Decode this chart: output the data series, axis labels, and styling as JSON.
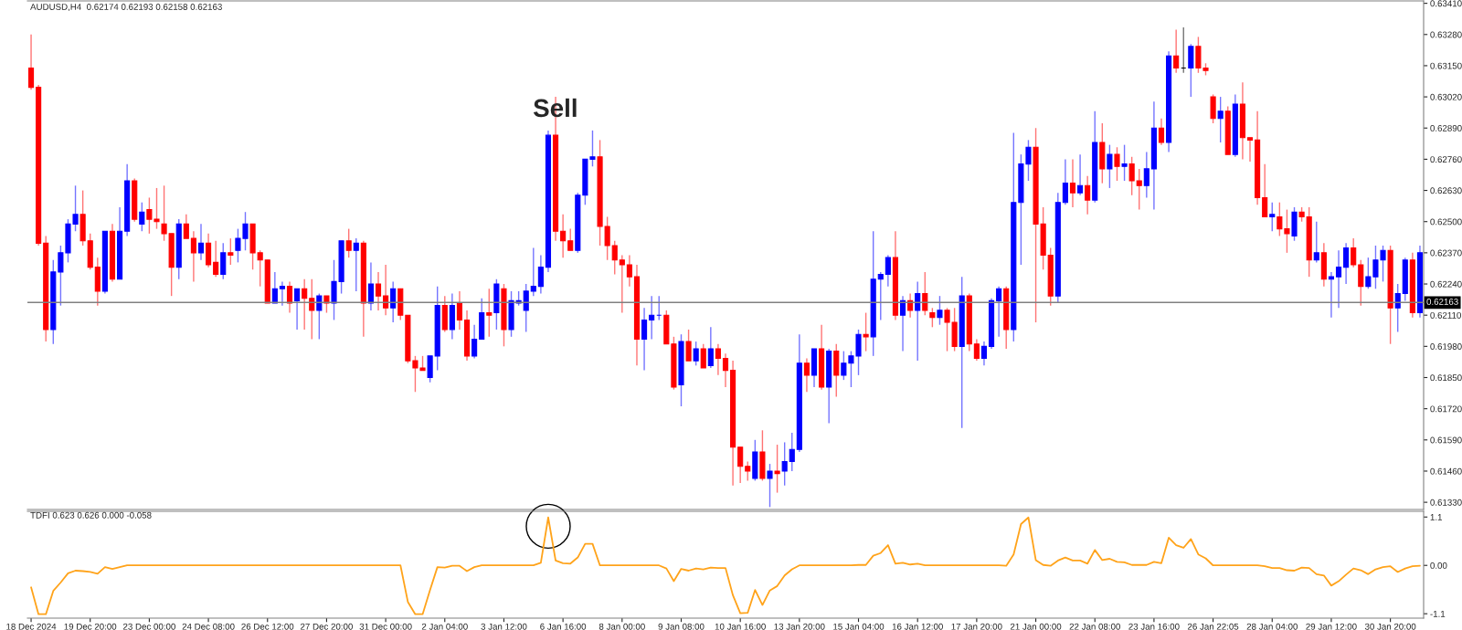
{
  "chart_data": [
    {
      "type": "candlestick",
      "title": "AUDUSD,H4  0.62174 0.62193 0.62158 0.62163",
      "categories": [
        null,
        null,
        null,
        null,
        null,
        null,
        null,
        null,
        null,
        null,
        null,
        null,
        null,
        null,
        null,
        null,
        null,
        null,
        null,
        null,
        null,
        null,
        null,
        null,
        null,
        null,
        null,
        null,
        null,
        null,
        null,
        null,
        null,
        null,
        null,
        null,
        null,
        null,
        null,
        null,
        null,
        null,
        null,
        null,
        null,
        null,
        null,
        null,
        null,
        null,
        null,
        null,
        null,
        null,
        null,
        null,
        null,
        null,
        null,
        null,
        null,
        null,
        null,
        null,
        null,
        null,
        null,
        null,
        null,
        null,
        null,
        null,
        null,
        null,
        null,
        null,
        null,
        null,
        null,
        null,
        null,
        null,
        null,
        null,
        null,
        null,
        null,
        null,
        null,
        null,
        null,
        null,
        null,
        null,
        null,
        null,
        null,
        null,
        null,
        null,
        null,
        null,
        null,
        null,
        null,
        null,
        null,
        null,
        null,
        null,
        null,
        null,
        null,
        null,
        null,
        null,
        null,
        null,
        null,
        null,
        null,
        null,
        null,
        null,
        null,
        null,
        null,
        null,
        null,
        null,
        null,
        null,
        null,
        null,
        null,
        null,
        null,
        null,
        null,
        null,
        null,
        null,
        null,
        null,
        null,
        null,
        null,
        null,
        null,
        null,
        null,
        null,
        null,
        null,
        null,
        null,
        null,
        null,
        null,
        null,
        null,
        null,
        null,
        null,
        null,
        null,
        null,
        null,
        null,
        null,
        null,
        null,
        null,
        null,
        null,
        null,
        null,
        null,
        null,
        null,
        null,
        null,
        null,
        null,
        null,
        null,
        null,
        null,
        null
      ],
      "ohlc": [
        [
          0.6314,
          0.6328,
          0.6305,
          0.6306
        ],
        [
          0.6306,
          0.6307,
          0.624,
          0.6241
        ],
        [
          0.6241,
          0.6244,
          0.62,
          0.6205
        ],
        [
          0.6205,
          0.6234,
          0.6199,
          0.6229
        ],
        [
          0.6229,
          0.624,
          0.6215,
          0.6237
        ],
        [
          0.6237,
          0.6251,
          0.6233,
          0.6249
        ],
        [
          0.6249,
          0.6265,
          0.6246,
          0.6253
        ],
        [
          0.6253,
          0.6263,
          0.624,
          0.6242
        ],
        [
          0.6242,
          0.6245,
          0.623,
          0.6231
        ],
        [
          0.6231,
          0.6235,
          0.6215,
          0.6221
        ],
        [
          0.6221,
          0.6246,
          0.622,
          0.6246
        ],
        [
          0.6246,
          0.6249,
          0.6225,
          0.6226
        ],
        [
          0.6226,
          0.6256,
          0.6226,
          0.6246
        ],
        [
          0.6246,
          0.6274,
          0.6244,
          0.6267
        ],
        [
          0.6267,
          0.6268,
          0.625,
          0.6251
        ],
        [
          0.6249,
          0.6258,
          0.6246,
          0.6254
        ],
        [
          0.6255,
          0.626,
          0.6245,
          0.6251
        ],
        [
          0.6251,
          0.6264,
          0.6247,
          0.625
        ],
        [
          0.6249,
          0.6265,
          0.6242,
          0.6245
        ],
        [
          0.6245,
          0.6245,
          0.6219,
          0.6231
        ],
        [
          0.6231,
          0.6251,
          0.6226,
          0.6249
        ],
        [
          0.6249,
          0.6253,
          0.6243,
          0.6243
        ],
        [
          0.6243,
          0.6246,
          0.6225,
          0.6237
        ],
        [
          0.6237,
          0.6249,
          0.6234,
          0.6241
        ],
        [
          0.6241,
          0.6245,
          0.6231,
          0.6232
        ],
        [
          0.6233,
          0.6242,
          0.6227,
          0.6228
        ],
        [
          0.6228,
          0.6241,
          0.6226,
          0.6237
        ],
        [
          0.6237,
          0.6243,
          0.6232,
          0.6236
        ],
        [
          0.6238,
          0.6247,
          0.6233,
          0.6243
        ],
        [
          0.6243,
          0.6254,
          0.6238,
          0.6249
        ],
        [
          0.6249,
          0.6249,
          0.623,
          0.6237
        ],
        [
          0.6237,
          0.6238,
          0.6223,
          0.6234
        ],
        [
          0.6234,
          0.6234,
          0.6216,
          0.6216
        ],
        [
          0.6216,
          0.6229,
          0.6216,
          0.6222
        ],
        [
          0.6222,
          0.6225,
          0.6215,
          0.6223
        ],
        [
          0.6223,
          0.6225,
          0.6212,
          0.6216
        ],
        [
          0.6217,
          0.6222,
          0.6205,
          0.6222
        ],
        [
          0.6222,
          0.6226,
          0.6205,
          0.6218
        ],
        [
          0.6218,
          0.6226,
          0.6201,
          0.6213
        ],
        [
          0.6213,
          0.622,
          0.6201,
          0.6219
        ],
        [
          0.6219,
          0.6219,
          0.6212,
          0.6216
        ],
        [
          0.6216,
          0.6234,
          0.6209,
          0.6225
        ],
        [
          0.6225,
          0.6242,
          0.622,
          0.6242
        ],
        [
          0.6242,
          0.6247,
          0.6235,
          0.6238
        ],
        [
          0.6238,
          0.6243,
          0.6221,
          0.6241
        ],
        [
          0.6241,
          0.6242,
          0.6202,
          0.6216
        ],
        [
          0.6216,
          0.6233,
          0.6213,
          0.6224
        ],
        [
          0.6224,
          0.6229,
          0.6213,
          0.6219
        ],
        [
          0.6219,
          0.6232,
          0.6211,
          0.6214
        ],
        [
          0.6214,
          0.6225,
          0.6208,
          0.6222
        ],
        [
          0.6222,
          0.6222,
          0.6209,
          0.6211
        ],
        [
          0.6211,
          0.6211,
          0.6191,
          0.6192
        ],
        [
          0.6192,
          0.6194,
          0.6179,
          0.6189
        ],
        [
          0.6189,
          0.6194,
          0.6188,
          0.6188
        ],
        [
          0.6185,
          0.6194,
          0.6183,
          0.6194
        ],
        [
          0.6194,
          0.6223,
          0.6188,
          0.6215
        ],
        [
          0.6215,
          0.6219,
          0.6204,
          0.6205
        ],
        [
          0.6205,
          0.622,
          0.6201,
          0.6215
        ],
        [
          0.6216,
          0.6221,
          0.6205,
          0.6209
        ],
        [
          0.6209,
          0.6213,
          0.6192,
          0.6194
        ],
        [
          0.6194,
          0.6207,
          0.6193,
          0.6201
        ],
        [
          0.6201,
          0.6218,
          0.6201,
          0.6212
        ],
        [
          0.6212,
          0.6222,
          0.6202,
          0.6211
        ],
        [
          0.6212,
          0.6226,
          0.6205,
          0.6224
        ],
        [
          0.6222,
          0.6224,
          0.6198,
          0.6205
        ],
        [
          0.6205,
          0.6221,
          0.6202,
          0.6217
        ],
        [
          0.6216,
          0.6221,
          0.6215,
          0.6217
        ],
        [
          0.6213,
          0.6224,
          0.6204,
          0.6221
        ],
        [
          0.6221,
          0.6239,
          0.6219,
          0.6223
        ],
        [
          0.6223,
          0.6236,
          0.622,
          0.6231
        ],
        [
          0.6231,
          0.6288,
          0.6229,
          0.6286
        ],
        [
          0.6286,
          0.6302,
          0.6242,
          0.6246
        ],
        [
          0.6246,
          0.6253,
          0.6235,
          0.6242
        ],
        [
          0.6242,
          0.6247,
          0.6238,
          0.6238
        ],
        [
          0.6238,
          0.6262,
          0.6237,
          0.6261
        ],
        [
          0.6261,
          0.6276,
          0.6257,
          0.6276
        ],
        [
          0.6276,
          0.6288,
          0.6273,
          0.6277
        ],
        [
          0.6277,
          0.6284,
          0.624,
          0.6248
        ],
        [
          0.6248,
          0.6252,
          0.6234,
          0.624
        ],
        [
          0.624,
          0.6242,
          0.6228,
          0.6234
        ],
        [
          0.6234,
          0.6236,
          0.6212,
          0.6232
        ],
        [
          0.6232,
          0.6236,
          0.6223,
          0.6227
        ],
        [
          0.6227,
          0.6232,
          0.619,
          0.6201
        ],
        [
          0.6201,
          0.6214,
          0.6188,
          0.6209
        ],
        [
          0.6209,
          0.6219,
          0.6201,
          0.6211
        ],
        [
          0.6211,
          0.6219,
          0.6209,
          0.6211
        ],
        [
          0.6211,
          0.6213,
          0.6199,
          0.6199
        ],
        [
          0.6199,
          0.6202,
          0.618,
          0.6181
        ],
        [
          0.6182,
          0.6203,
          0.6173,
          0.62
        ],
        [
          0.62,
          0.6205,
          0.6192,
          0.6192
        ],
        [
          0.6192,
          0.62,
          0.619,
          0.6197
        ],
        [
          0.6197,
          0.6199,
          0.6189,
          0.6189
        ],
        [
          0.619,
          0.6206,
          0.6189,
          0.6197
        ],
        [
          0.6197,
          0.6199,
          0.6186,
          0.6193
        ],
        [
          0.6193,
          0.6195,
          0.6181,
          0.6188
        ],
        [
          0.6188,
          0.6192,
          0.614,
          0.6156
        ],
        [
          0.6156,
          0.6156,
          0.6141,
          0.6148
        ],
        [
          0.6148,
          0.615,
          0.6142,
          0.6146
        ],
        [
          0.6143,
          0.6159,
          0.6142,
          0.6154
        ],
        [
          0.6154,
          0.6163,
          0.6142,
          0.6143
        ],
        [
          0.6143,
          0.6149,
          0.6131,
          0.6146
        ],
        [
          0.6146,
          0.6157,
          0.6137,
          0.6145
        ],
        [
          0.6146,
          0.6158,
          0.614,
          0.615
        ],
        [
          0.615,
          0.6162,
          0.6146,
          0.6155
        ],
        [
          0.6155,
          0.6203,
          0.6154,
          0.6191
        ],
        [
          0.6191,
          0.6193,
          0.6179,
          0.6186
        ],
        [
          0.6186,
          0.6197,
          0.6181,
          0.6197
        ],
        [
          0.6197,
          0.6207,
          0.618,
          0.6181
        ],
        [
          0.6181,
          0.6197,
          0.6166,
          0.6196
        ],
        [
          0.6196,
          0.6199,
          0.6177,
          0.6186
        ],
        [
          0.6186,
          0.6196,
          0.6184,
          0.6191
        ],
        [
          0.6191,
          0.6196,
          0.6181,
          0.6194
        ],
        [
          0.6194,
          0.6205,
          0.6186,
          0.6203
        ],
        [
          0.6203,
          0.6212,
          0.6196,
          0.6202
        ],
        [
          0.6202,
          0.6246,
          0.6194,
          0.6226
        ],
        [
          0.6226,
          0.6229,
          0.6209,
          0.6228
        ],
        [
          0.6228,
          0.6236,
          0.6223,
          0.6235
        ],
        [
          0.6235,
          0.6246,
          0.6209,
          0.6211
        ],
        [
          0.6211,
          0.6219,
          0.6196,
          0.6217
        ],
        [
          0.6217,
          0.622,
          0.621,
          0.6213
        ],
        [
          0.6213,
          0.6225,
          0.6192,
          0.622
        ],
        [
          0.622,
          0.6229,
          0.6211,
          0.6213
        ],
        [
          0.6212,
          0.6214,
          0.6206,
          0.621
        ],
        [
          0.621,
          0.6219,
          0.6207,
          0.6213
        ],
        [
          0.6213,
          0.6214,
          0.6196,
          0.6208
        ],
        [
          0.6208,
          0.6214,
          0.6196,
          0.6198
        ],
        [
          0.6198,
          0.6227,
          0.6164,
          0.6219
        ],
        [
          0.6219,
          0.622,
          0.6196,
          0.6199
        ],
        [
          0.6199,
          0.6201,
          0.6192,
          0.6193
        ],
        [
          0.6193,
          0.62,
          0.619,
          0.6198
        ],
        [
          0.6198,
          0.6218,
          0.6197,
          0.6217
        ],
        [
          0.6217,
          0.6223,
          0.6202,
          0.6222
        ],
        [
          0.6222,
          0.6223,
          0.6197,
          0.6205
        ],
        [
          0.6205,
          0.6287,
          0.62,
          0.6258
        ],
        [
          0.6258,
          0.6278,
          0.6232,
          0.6274
        ],
        [
          0.6274,
          0.6284,
          0.6267,
          0.6281
        ],
        [
          0.6281,
          0.6289,
          0.6208,
          0.6249
        ],
        [
          0.6249,
          0.6256,
          0.623,
          0.6236
        ],
        [
          0.6236,
          0.6239,
          0.6215,
          0.6219
        ],
        [
          0.6219,
          0.6262,
          0.6216,
          0.6258
        ],
        [
          0.6258,
          0.6276,
          0.6257,
          0.6266
        ],
        [
          0.6266,
          0.6276,
          0.6256,
          0.6262
        ],
        [
          0.6262,
          0.6278,
          0.6261,
          0.6265
        ],
        [
          0.6265,
          0.6269,
          0.6253,
          0.6259
        ],
        [
          0.6259,
          0.6296,
          0.6258,
          0.6283
        ],
        [
          0.6283,
          0.6291,
          0.6266,
          0.6272
        ],
        [
          0.6272,
          0.6282,
          0.6264,
          0.6278
        ],
        [
          0.6278,
          0.6281,
          0.6267,
          0.6273
        ],
        [
          0.6273,
          0.6282,
          0.6267,
          0.6274
        ],
        [
          0.6274,
          0.6277,
          0.6261,
          0.6267
        ],
        [
          0.6267,
          0.6272,
          0.6255,
          0.6265
        ],
        [
          0.6265,
          0.6279,
          0.626,
          0.6272
        ],
        [
          0.6272,
          0.63,
          0.6255,
          0.6289
        ],
        [
          0.6289,
          0.6293,
          0.6282,
          0.6283
        ],
        [
          0.6283,
          0.6321,
          0.6279,
          0.6319
        ],
        [
          0.6319,
          0.633,
          0.6312,
          0.6314
        ],
        [
          0.6314,
          0.6331,
          0.6312,
          0.6314
        ],
        [
          0.6314,
          0.6324,
          0.6302,
          0.6323
        ],
        [
          0.6323,
          0.6327,
          0.6312,
          0.6314
        ],
        [
          0.6314,
          0.6316,
          0.6311,
          0.6313
        ],
        [
          0.6302,
          0.6303,
          0.6291,
          0.6293
        ],
        [
          0.6293,
          0.6302,
          0.6283,
          0.6296
        ],
        [
          0.6296,
          0.6298,
          0.6278,
          0.6278
        ],
        [
          0.6278,
          0.6303,
          0.6277,
          0.6299
        ],
        [
          0.6299,
          0.6308,
          0.6276,
          0.6285
        ],
        [
          0.6285,
          0.6285,
          0.6275,
          0.6284
        ],
        [
          0.6284,
          0.6296,
          0.6257,
          0.626
        ],
        [
          0.626,
          0.6274,
          0.6252,
          0.6252
        ],
        [
          0.6252,
          0.6258,
          0.6246,
          0.6253
        ],
        [
          0.6252,
          0.6258,
          0.6244,
          0.6247
        ],
        [
          0.6247,
          0.6255,
          0.6237,
          0.6245
        ],
        [
          0.6244,
          0.6256,
          0.6242,
          0.6254
        ],
        [
          0.6254,
          0.6256,
          0.625,
          0.6252
        ],
        [
          0.6252,
          0.6256,
          0.6227,
          0.6234
        ],
        [
          0.6234,
          0.625,
          0.6233,
          0.6237
        ],
        [
          0.6237,
          0.6241,
          0.6223,
          0.6226
        ],
        [
          0.6226,
          0.6229,
          0.621,
          0.6227
        ],
        [
          0.6227,
          0.6238,
          0.6214,
          0.6231
        ],
        [
          0.6231,
          0.6241,
          0.6224,
          0.6239
        ],
        [
          0.6239,
          0.6243,
          0.6231,
          0.6232
        ],
        [
          0.6232,
          0.6234,
          0.6215,
          0.6223
        ],
        [
          0.6223,
          0.6235,
          0.6222,
          0.6227
        ],
        [
          0.6227,
          0.624,
          0.6222,
          0.6234
        ],
        [
          0.6234,
          0.624,
          0.6225,
          0.6238
        ],
        [
          0.6238,
          0.624,
          0.6199,
          0.6214
        ],
        [
          0.6214,
          0.6224,
          0.6204,
          0.622
        ],
        [
          0.622,
          0.6235,
          0.6217,
          0.6234
        ],
        [
          0.6234,
          0.6237,
          0.621,
          0.6212
        ],
        [
          0.6212,
          0.624,
          0.621,
          0.6237
        ]
      ],
      "colors": [
        "#ff0000",
        "#ff0000",
        "#ff0000",
        "#0000ff",
        "#0000ff",
        "#0000ff",
        "#0000ff",
        "#ff0000",
        "#ff0000",
        "#ff0000",
        "#0000ff",
        "#ff0000",
        "#0000ff",
        "#0000ff",
        "#ff0000",
        "#0000ff",
        "#ff0000",
        "#ff0000",
        "#ff0000",
        "#ff0000",
        "#0000ff",
        "#ff0000",
        "#ff0000",
        "#0000ff",
        "#ff0000",
        "#ff0000",
        "#0000ff",
        "#ff0000",
        "#0000ff",
        "#0000ff",
        "#ff0000",
        "#ff0000",
        "#ff0000",
        "#0000ff",
        "#0000ff",
        "#ff0000",
        "#0000ff",
        "#ff0000",
        "#ff0000",
        "#0000ff",
        "#ff0000",
        "#0000ff",
        "#0000ff",
        "#ff0000",
        "#0000ff",
        "#ff0000",
        "#0000ff",
        "#ff0000",
        "#ff0000",
        "#0000ff",
        "#ff0000",
        "#ff0000",
        "#ff0000",
        "#ff0000",
        "#0000ff",
        "#0000ff",
        "#ff0000",
        "#0000ff",
        "#ff0000",
        "#ff0000",
        "#0000ff",
        "#0000ff",
        "#ff0000",
        "#0000ff",
        "#ff0000",
        "#0000ff",
        "#0000ff",
        "#0000ff",
        "#0000ff",
        "#0000ff",
        "#0000ff",
        "#ff0000",
        "#ff0000",
        "#ff0000",
        "#0000ff",
        "#0000ff",
        "#0000ff",
        "#ff0000",
        "#ff0000",
        "#ff0000",
        "#ff0000",
        "#ff0000",
        "#ff0000",
        "#0000ff",
        "#0000ff",
        "#0000ff",
        "#ff0000",
        "#ff0000",
        "#0000ff",
        "#ff0000",
        "#0000ff",
        "#ff0000",
        "#0000ff",
        "#ff0000",
        "#ff0000",
        "#ff0000",
        "#ff0000",
        "#ff0000",
        "#0000ff",
        "#ff0000",
        "#0000ff",
        "#ff0000",
        "#0000ff",
        "#0000ff",
        "#0000ff",
        "#ff0000",
        "#0000ff",
        "#ff0000",
        "#0000ff",
        "#ff0000",
        "#0000ff",
        "#0000ff",
        "#0000ff",
        "#ff0000",
        "#0000ff",
        "#0000ff",
        "#0000ff",
        "#ff0000",
        "#0000ff",
        "#ff0000",
        "#0000ff",
        "#ff0000",
        "#ff0000",
        "#0000ff",
        "#ff0000",
        "#ff0000",
        "#0000ff",
        "#ff0000",
        "#ff0000",
        "#0000ff",
        "#0000ff",
        "#0000ff",
        "#ff0000",
        "#0000ff",
        "#0000ff",
        "#0000ff",
        "#ff0000",
        "#ff0000",
        "#ff0000",
        "#0000ff",
        "#0000ff",
        "#ff0000",
        "#0000ff",
        "#ff0000",
        "#0000ff",
        "#ff0000",
        "#0000ff",
        "#ff0000",
        "#0000ff",
        "#ff0000",
        "#ff0000",
        "#0000ff",
        "#0000ff",
        "#ff0000",
        "#0000ff",
        "#ff0000",
        "#000000",
        "#0000ff",
        "#ff0000",
        "#ff0000",
        "#ff0000",
        "#0000ff",
        "#ff0000",
        "#0000ff",
        "#ff0000",
        "#ff0000",
        "#ff0000",
        "#ff0000",
        "#0000ff",
        "#ff0000",
        "#ff0000",
        "#0000ff",
        "#ff0000",
        "#ff0000",
        "#0000ff",
        "#ff0000",
        "#0000ff",
        "#0000ff",
        "#0000ff",
        "#ff0000",
        "#ff0000",
        "#0000ff",
        "#0000ff",
        "#0000ff",
        "#ff0000",
        "#0000ff",
        "#0000ff",
        "#ff0000",
        "#0000ff"
      ],
      "ylim": [
        0.613,
        0.6342
      ],
      "yticks": [
        {
          "value": 0.6133,
          "label": "0.61330"
        },
        {
          "value": 0.6146,
          "label": "0.61460"
        },
        {
          "value": 0.6159,
          "label": "0.61590"
        },
        {
          "value": 0.6172,
          "label": "0.61720"
        },
        {
          "value": 0.6185,
          "label": "0.61850"
        },
        {
          "value": 0.6198,
          "label": "0.61980"
        },
        {
          "value": 0.6211,
          "label": "0.62110"
        },
        {
          "value": 0.6224,
          "label": "0.62240"
        },
        {
          "value": 0.6237,
          "label": "0.62370"
        },
        {
          "value": 0.625,
          "label": "0.62500"
        },
        {
          "value": 0.6263,
          "label": "0.62630"
        },
        {
          "value": 0.6276,
          "label": "0.62760"
        },
        {
          "value": 0.6289,
          "label": "0.62890"
        },
        {
          "value": 0.6302,
          "label": "0.63020"
        },
        {
          "value": 0.6315,
          "label": "0.63150"
        },
        {
          "value": 0.6328,
          "label": "0.63280"
        },
        {
          "value": 0.6341,
          "label": "0.63410"
        }
      ],
      "ref_lines": [
        {
          "axis": "y",
          "value": 0.62163,
          "label": "0.62163",
          "color": "#808080"
        }
      ],
      "annotations": [
        "Sell"
      ],
      "tick_labels": "y"
    },
    {
      "type": "line",
      "title": "TDFI 0.623 0.626 0.000 -0.058",
      "categories": [
        "18 Dec 2024",
        null,
        null,
        null,
        null,
        null,
        null,
        null,
        "19 Dec 20:00",
        null,
        null,
        null,
        null,
        null,
        null,
        null,
        "23 Dec 00:00",
        null,
        null,
        null,
        null,
        null,
        null,
        null,
        "24 Dec 08:00",
        null,
        null,
        null,
        null,
        null,
        null,
        null,
        "26 Dec 12:00",
        null,
        null,
        null,
        null,
        null,
        null,
        null,
        "27 Dec 20:00",
        null,
        null,
        null,
        null,
        null,
        null,
        null,
        "31 Dec 00:00",
        null,
        null,
        null,
        null,
        null,
        null,
        null,
        "2 Jan 04:00",
        null,
        null,
        null,
        null,
        null,
        null,
        null,
        "3 Jan 12:00",
        null,
        null,
        null,
        null,
        null,
        null,
        null,
        "6 Jan 16:00",
        null,
        null,
        null,
        null,
        null,
        null,
        null,
        "8 Jan 00:00",
        null,
        null,
        null,
        null,
        null,
        null,
        null,
        "9 Jan 08:00",
        null,
        null,
        null,
        null,
        null,
        null,
        null,
        "10 Jan 16:00",
        null,
        null,
        null,
        null,
        null,
        null,
        null,
        "13 Jan 20:00",
        null,
        null,
        null,
        null,
        null,
        null,
        null,
        "15 Jan 04:00",
        null,
        null,
        null,
        null,
        null,
        null,
        null,
        "16 Jan 12:00",
        null,
        null,
        null,
        null,
        null,
        null,
        null,
        "17 Jan 20:00",
        null,
        null,
        null,
        null,
        null,
        null,
        null,
        "21 Jan 00:00",
        null,
        null,
        null,
        null,
        null,
        null,
        null,
        "22 Jan 08:00",
        null,
        null,
        null,
        null,
        null,
        null,
        null,
        "23 Jan 16:00",
        null,
        null,
        null,
        null,
        null,
        null,
        null,
        "26 Jan 22:05",
        null,
        null,
        null,
        null,
        null,
        null,
        null,
        "28 Jan 04:00",
        null,
        null,
        null,
        null,
        null,
        null,
        null,
        "29 Jan 12:00",
        null,
        null,
        null,
        null,
        null,
        null,
        null,
        "30 Jan 20:00",
        null,
        null,
        null,
        null
      ],
      "series": [
        {
          "color": "#ffa31a",
          "values": [
            -0.5,
            -1.11,
            -1.11,
            -0.58,
            -0.39,
            -0.18,
            -0.12,
            -0.13,
            -0.15,
            -0.19,
            -0.04,
            -0.08,
            -0.04,
            0,
            0,
            0,
            0,
            0,
            0,
            0,
            0,
            0,
            0,
            0,
            0,
            0,
            0,
            0,
            0,
            0,
            0,
            0,
            0,
            0,
            0,
            0,
            0,
            0,
            0,
            0,
            0,
            0,
            0,
            0,
            0,
            0,
            0,
            0,
            0,
            0,
            0,
            -0.83,
            -1.11,
            -1.11,
            -0.56,
            -0.04,
            -0.05,
            -0.01,
            -0.01,
            -0.13,
            -0.04,
            0,
            0,
            0,
            0,
            0,
            0,
            0,
            0,
            0.06,
            1.09,
            0.11,
            0.05,
            0.04,
            0.18,
            0.49,
            0.49,
            0,
            0,
            0,
            0,
            0,
            0,
            0,
            0,
            0,
            -0.07,
            -0.36,
            -0.08,
            -0.12,
            -0.07,
            -0.09,
            -0.05,
            -0.06,
            -0.06,
            -0.68,
            -1.09,
            -1.08,
            -0.56,
            -0.9,
            -0.57,
            -0.47,
            -0.23,
            -0.09,
            0,
            0,
            0,
            0,
            0,
            0,
            0,
            0,
            0.01,
            0.01,
            0.22,
            0.28,
            0.46,
            0.04,
            0.06,
            0.02,
            0.04,
            0,
            0,
            0,
            0,
            0,
            0,
            0,
            0,
            0,
            0,
            0,
            -0.01,
            0.25,
            0.94,
            1.09,
            0.12,
            0.01,
            -0.01,
            0.11,
            0.18,
            0.11,
            0.11,
            0.04,
            0.35,
            0.12,
            0.15,
            0.08,
            0.07,
            0.01,
            0.01,
            0.01,
            0.08,
            0.05,
            0.63,
            0.46,
            0.4,
            0.6,
            0.25,
            0.16,
            0,
            0,
            0,
            0,
            0,
            0,
            0,
            -0.02,
            -0.06,
            -0.06,
            -0.11,
            -0.12,
            -0.05,
            -0.06,
            -0.2,
            -0.23,
            -0.46,
            -0.36,
            -0.21,
            -0.07,
            -0.11,
            -0.2,
            -0.09,
            -0.04,
            -0.02,
            -0.15,
            -0.07,
            -0.02,
            -0.01
          ]
        }
      ],
      "ylim": [
        -1.2,
        1.23
      ],
      "yticks": [
        -1.1,
        {
          "value": 0,
          "label": "0.00"
        },
        1.1
      ]
    }
  ]
}
